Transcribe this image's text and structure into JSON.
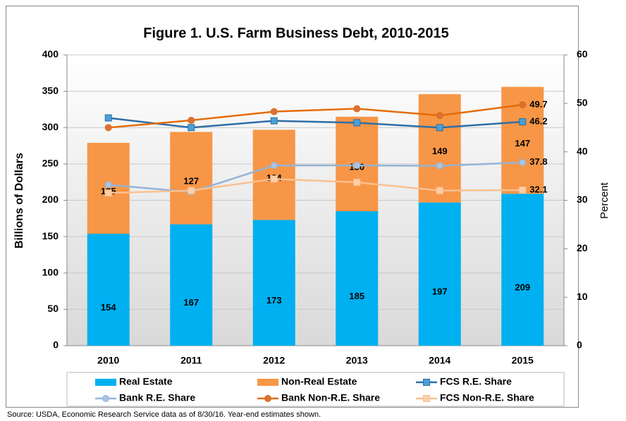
{
  "chart_data": {
    "type": "bar",
    "title": "Figure 1. U.S. Farm Business Debt, 2010-2015",
    "ylabel": "Billions of Dollars",
    "y2label": "Percent",
    "note": "Source: USDA, Economic Research Service data as of 8/30/16. Year-end estimates shown.",
    "categories": [
      "2010",
      "2011",
      "2012",
      "2013",
      "2014",
      "2015"
    ],
    "ylim": [
      0,
      400
    ],
    "yticks": [
      0,
      50,
      100,
      150,
      200,
      250,
      300,
      350,
      400
    ],
    "y2lim": [
      0,
      60
    ],
    "y2ticks": [
      0,
      10,
      20,
      30,
      40,
      50,
      60
    ],
    "grid": true,
    "legend": "bottom",
    "stacked": true,
    "bar_data_labels": true,
    "line_label_last": true,
    "series": [
      {
        "name": "Real Estate",
        "type": "bar",
        "color": "#00b0f0",
        "values": [
          154,
          167,
          173,
          185,
          197,
          209
        ]
      },
      {
        "name": "Non-Real Estate",
        "type": "bar",
        "color": "#f79646",
        "values": [
          125,
          127,
          124,
          130,
          149,
          147
        ]
      },
      {
        "name": "FCS R.E. Share",
        "type": "line",
        "axis": "y2",
        "marker": "square",
        "color": "#2f6ea6",
        "marker_fill": "#4aa0d5",
        "values": [
          47,
          45,
          46.4,
          46,
          45,
          46.2
        ]
      },
      {
        "name": "Bank R.E. Share",
        "type": "line",
        "axis": "y2",
        "marker": "circle",
        "color": "#95b3d7",
        "marker_fill": "#a9c4e4",
        "values": [
          33.2,
          31.7,
          37.2,
          37.2,
          37.1,
          37.8
        ]
      },
      {
        "name": "Bank Non-R.E. Share",
        "type": "line",
        "axis": "y2",
        "marker": "circle",
        "color": "#e46c0a",
        "marker_fill": "#d9703a",
        "values": [
          45,
          46.5,
          48.3,
          48.9,
          47.5,
          49.7
        ]
      },
      {
        "name": "FCS Non-R.E. Share",
        "type": "line",
        "axis": "y2",
        "marker": "square",
        "color": "#fac090",
        "marker_fill": "#fbcfa8",
        "values": [
          31.5,
          32,
          34.4,
          33.7,
          32,
          32.1
        ]
      }
    ]
  }
}
